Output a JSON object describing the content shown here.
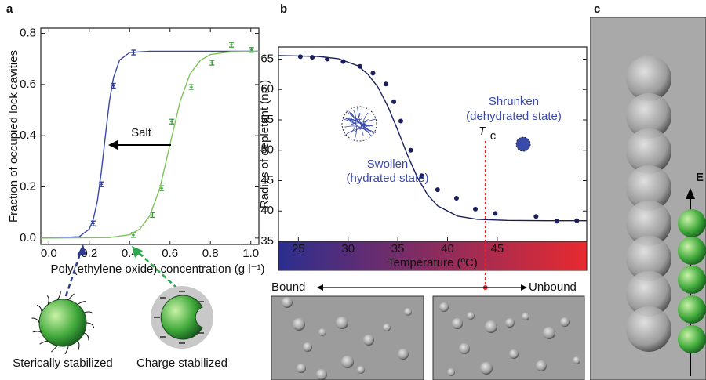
{
  "chart_data": [
    {
      "type": "line",
      "panel_label": "a",
      "y_label": "Fraction of occupied lock cavities",
      "x_label": "Poly(ethylene oxide) concentration (g l⁻¹)",
      "xlim": [
        -0.04,
        1.04
      ],
      "ylim": [
        -0.025,
        0.82
      ],
      "xticks": [
        {
          "value": 0,
          "label": "0.0"
        },
        0.2,
        0.4,
        0.6,
        0.8,
        {
          "value": 1,
          "label": "1.0"
        }
      ],
      "yticks": [
        {
          "value": 0,
          "label": "0.0"
        },
        0.2,
        0.4,
        0.6,
        0.8
      ],
      "annotation": "Salt",
      "captions": [
        "Sterically stabilized",
        "Charge stabilized"
      ],
      "series": [
        {
          "style": "points",
          "color": "#2e3a8f",
          "x": [
            0.22,
            0.26,
            0.32,
            0.42
          ],
          "values": [
            0.057,
            0.21,
            0.595,
            0.725
          ]
        },
        {
          "style": "points",
          "color": "#3a9a3a",
          "x": [
            0.418,
            0.513,
            0.559,
            0.609,
            0.705,
            0.808,
            0.904,
            1.004
          ],
          "values": [
            0.012,
            0.09,
            0.195,
            0.455,
            0.59,
            0.685,
            0.755,
            0.735
          ]
        },
        {
          "style": "line",
          "color": "#3b48a8",
          "x": [
            -0.04,
            0,
            0.15,
            0.2,
            0.22,
            0.24,
            0.26,
            0.28,
            0.3,
            0.32,
            0.35,
            0.4,
            0.5,
            1.04
          ],
          "values": [
            0,
            0,
            0.0049,
            0.035,
            0.073,
            0.144,
            0.259,
            0.401,
            0.534,
            0.627,
            0.695,
            0.725,
            0.73,
            0.73
          ]
        },
        {
          "style": "line",
          "color": "#7cc35a",
          "x": [
            -0.04,
            0,
            0.3,
            0.4,
            0.45,
            0.5,
            0.55,
            0.6,
            0.65,
            0.7,
            0.75,
            0.8,
            0.9,
            1.04
          ],
          "values": [
            0,
            0,
            0.0018,
            0.013,
            0.035,
            0.087,
            0.196,
            0.365,
            0.534,
            0.643,
            0.694,
            0.717,
            0.728,
            0.73
          ]
        }
      ]
    },
    {
      "type": "line",
      "panel_label": "b",
      "y_label": "Radius of depletant (nm)",
      "x_label": "Temperature (ºC)",
      "xlim": [
        23,
        54
      ],
      "ylim": [
        35,
        67
      ],
      "xticks": [
        25,
        30,
        35,
        40,
        45
      ],
      "yticks": [
        35,
        40,
        45,
        50,
        55,
        60,
        65
      ],
      "colorbar": [
        "#2b2e8f",
        "#e82a2f"
      ],
      "swollen": [
        "Swollen",
        "(hydrated state)"
      ],
      "shrunken": [
        "Shrunken",
        "(dehydrated state)"
      ],
      "transition": {
        "text": "T",
        "subscript": "c",
        "x": 43.8
      },
      "range_labels": [
        "Bound",
        "Unbound"
      ],
      "series": [
        {
          "style": "points",
          "color": "#1b1f5c",
          "x": [
            25.2,
            26.4,
            27.9,
            29.5,
            31.2,
            32.5,
            33.8,
            34.6,
            35.3,
            36.3,
            37.4,
            39.0,
            40.9,
            42.8,
            44.8,
            48.9,
            51.0,
            53.0
          ],
          "values": [
            65.4,
            65.3,
            65.0,
            64.6,
            63.8,
            62.7,
            60.9,
            58.0,
            54.8,
            50.0,
            45.8,
            43.5,
            42.1,
            40.3,
            39.6,
            39.1,
            38.3,
            38.4
          ]
        },
        {
          "style": "line",
          "color": "#1b1f5c",
          "x": [
            23,
            27,
            29,
            31,
            32,
            33,
            34,
            35,
            36,
            37,
            38,
            39,
            41,
            43,
            46,
            50,
            54
          ],
          "values": [
            65.6,
            65.45,
            65.08,
            63.9,
            62.5,
            60.4,
            57.2,
            53.3,
            49.1,
            45.4,
            42.65,
            40.85,
            39.16,
            38.62,
            38.45,
            38.4,
            38.4
          ]
        }
      ]
    }
  ],
  "panel_c": {
    "label": "c",
    "field": "E"
  }
}
